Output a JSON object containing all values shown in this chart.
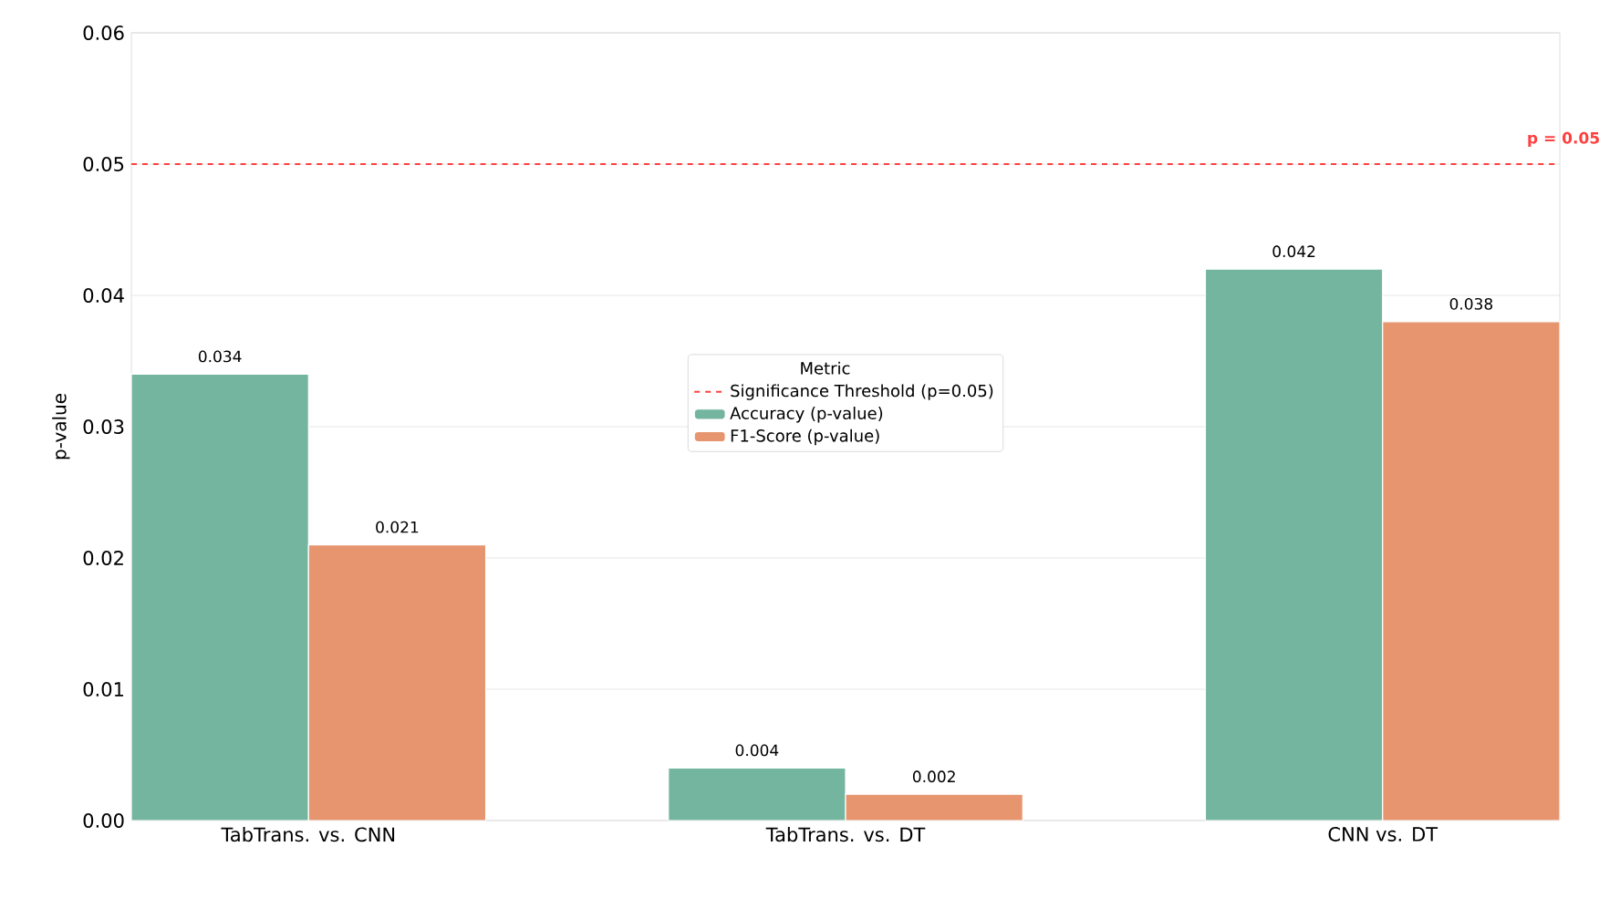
{
  "chart_data": {
    "type": "bar",
    "categories": [
      "TabTrans. vs. CNN",
      "TabTrans. vs. DT",
      "CNN vs. DT"
    ],
    "ylabel": "p-value",
    "legend_title": "Metric",
    "series": [
      {
        "name": "Accuracy (p-value)",
        "color": "#74b59f",
        "values": [
          0.034,
          0.004,
          0.042
        ]
      },
      {
        "name": "F1-Score (p-value)",
        "color": "#e6956e",
        "values": [
          0.021,
          0.002,
          0.038
        ]
      }
    ],
    "ylim": [
      0,
      0.06
    ],
    "yticks": [
      {
        "value": 0,
        "label": "0.00"
      },
      {
        "value": 0.01,
        "label": "0.01"
      },
      {
        "value": 0.02,
        "label": "0.02"
      },
      {
        "value": 0.03,
        "label": "0.03"
      },
      {
        "value": 0.04,
        "label": "0.04"
      },
      {
        "value": 0.05,
        "label": "0.05"
      },
      {
        "value": 0.06,
        "label": "0.06"
      }
    ],
    "ref_lines": [
      {
        "axis": "y",
        "value": 0.05,
        "label": "Significance Threshold (p=0.05)",
        "color": "#ff4040",
        "line_style": "dashed"
      }
    ],
    "annotations": [
      {
        "text": "p = 0.05",
        "y": 0.05
      }
    ],
    "data_labels": true,
    "grid": "y",
    "legend": "center"
  }
}
